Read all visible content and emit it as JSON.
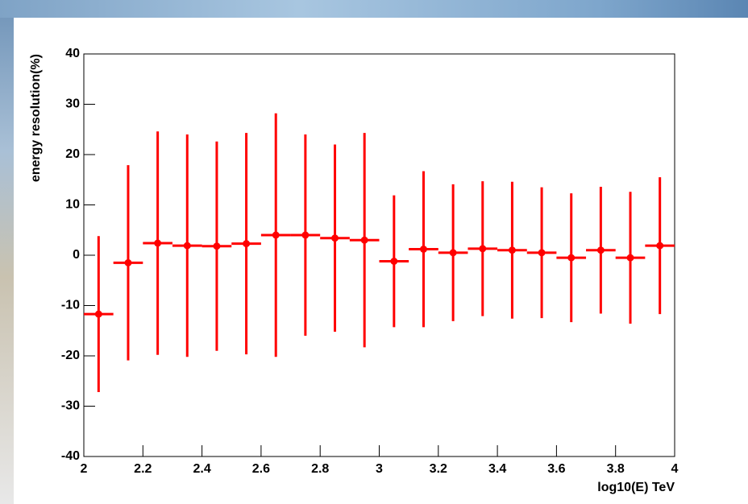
{
  "chart_data": {
    "type": "errorbar",
    "x_label": "log10(E) TeV",
    "y_label": "energy resolution(%)",
    "x": [
      2.05,
      2.15,
      2.25,
      2.35,
      2.45,
      2.55,
      2.65,
      2.75,
      2.85,
      2.95,
      3.05,
      3.15,
      3.25,
      3.35,
      3.45,
      3.55,
      3.65,
      3.75,
      3.85,
      3.95
    ],
    "xerr": 0.05,
    "values": [
      -11.7,
      -1.5,
      2.4,
      1.9,
      1.8,
      2.3,
      4.0,
      4.0,
      3.4,
      3.0,
      -1.2,
      1.2,
      0.5,
      1.3,
      1.0,
      0.5,
      -0.5,
      1.0,
      -0.5,
      1.9
    ],
    "errors": [
      15.5,
      19.4,
      22.2,
      22.1,
      20.8,
      22.0,
      24.2,
      20.0,
      18.6,
      21.3,
      13.1,
      15.5,
      13.6,
      13.4,
      13.6,
      13.0,
      12.8,
      12.6,
      13.1,
      13.6
    ],
    "color": "#ff0000",
    "xlim": [
      2,
      4
    ],
    "xticks": [
      2,
      2.2,
      2.4,
      2.6,
      2.8,
      3,
      3.2,
      3.4,
      3.6,
      3.8,
      4
    ],
    "ylim": [
      -40,
      40
    ],
    "yticks": [
      -40,
      -30,
      -20,
      -10,
      0,
      10,
      20,
      30,
      40
    ]
  }
}
